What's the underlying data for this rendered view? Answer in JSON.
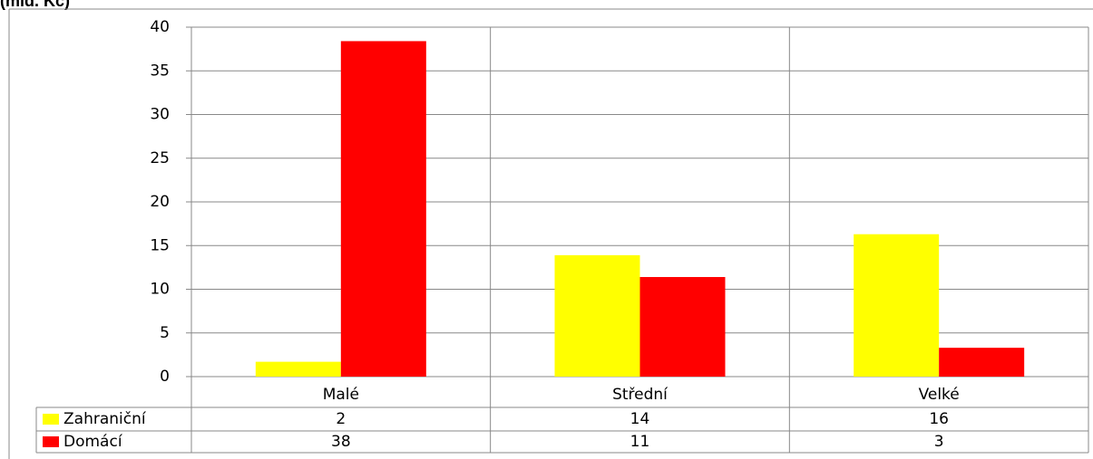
{
  "chart_data": {
    "type": "bar",
    "title": "(mld. Kč)",
    "categories": [
      "Malé",
      "Střední",
      "Velké"
    ],
    "series": [
      {
        "name": "Zahraniční",
        "color": "#ffff00",
        "values": [
          1.7,
          13.9,
          16.3
        ],
        "value_labels": [
          "2",
          "14",
          "16"
        ]
      },
      {
        "name": "Domácí",
        "color": "#ff0000",
        "values": [
          38.4,
          11.4,
          3.3
        ],
        "value_labels": [
          "38",
          "11",
          "3"
        ]
      }
    ],
    "ylim": [
      0,
      40
    ],
    "yticks": [
      0,
      5,
      10,
      15,
      20,
      25,
      30,
      35,
      40
    ],
    "grid": true
  }
}
